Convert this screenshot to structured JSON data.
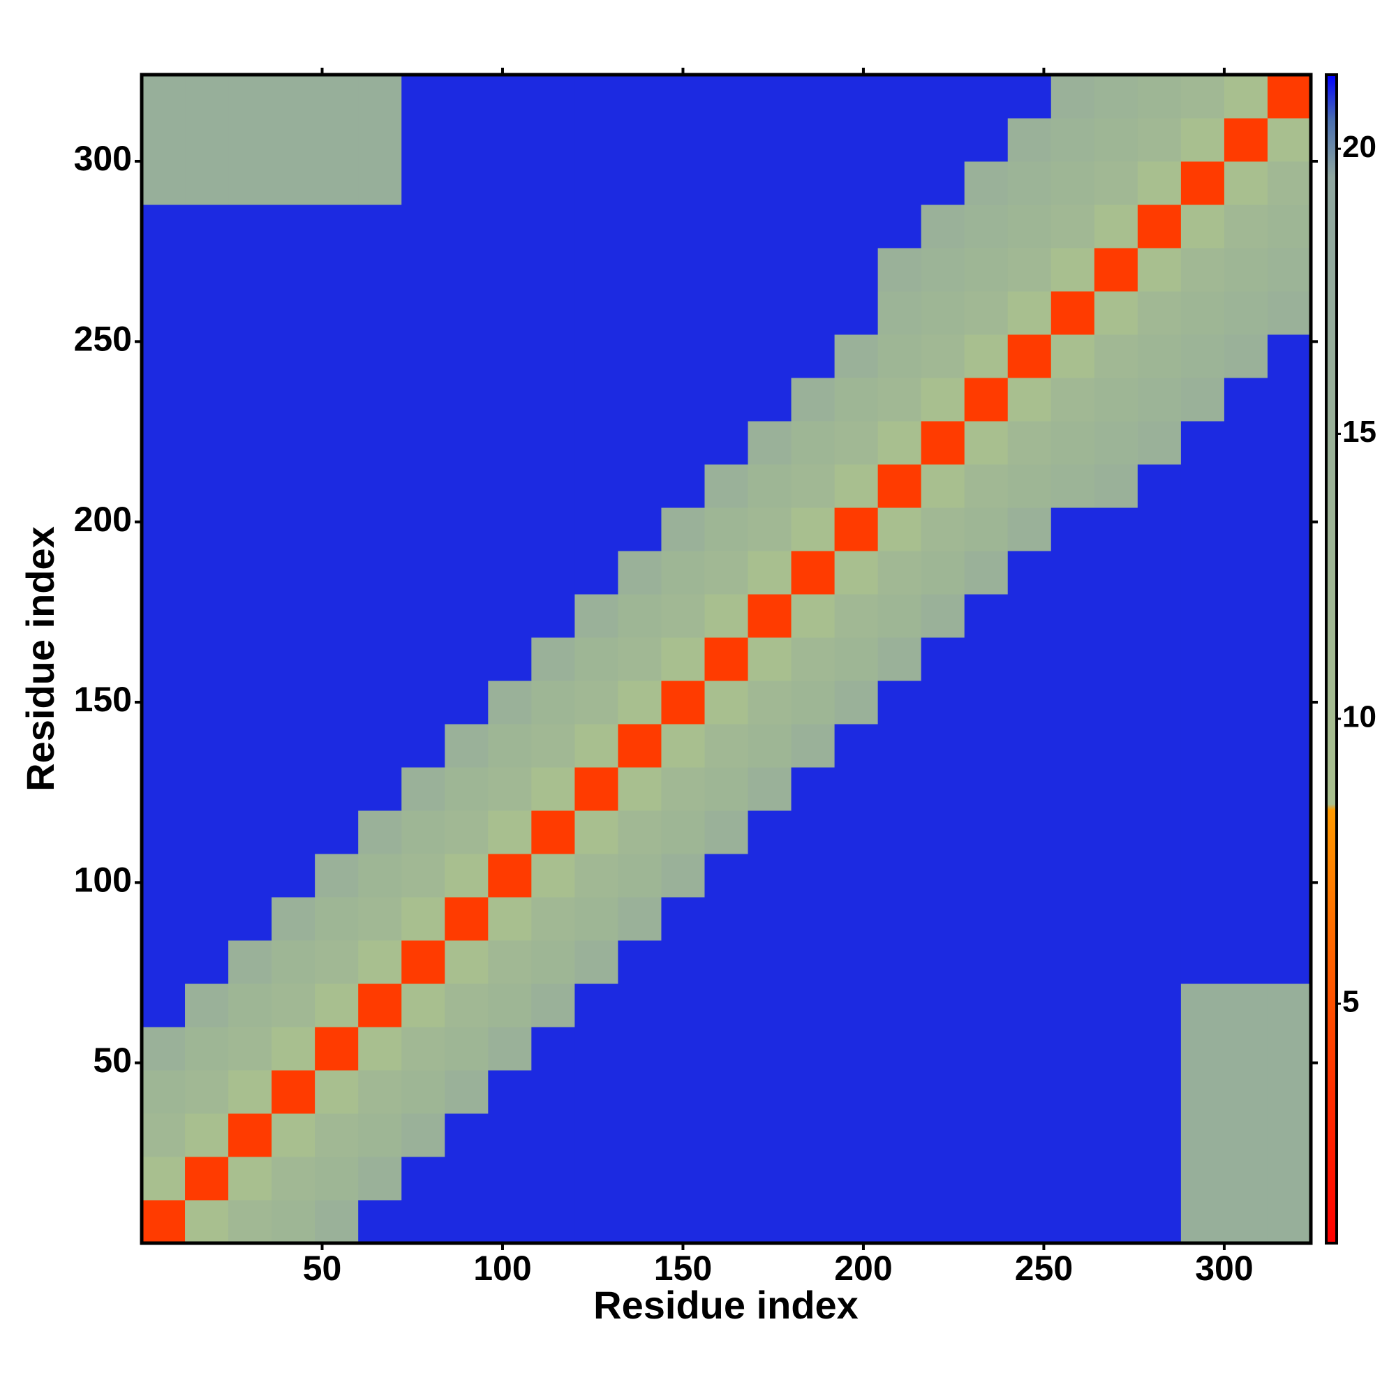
{
  "chart_data": {
    "type": "heatmap",
    "xlabel": "Residue index",
    "ylabel": "Residue index",
    "x_edges": [
      0,
      12,
      24,
      36,
      48,
      60,
      72,
      84,
      96,
      108,
      120,
      132,
      144,
      156,
      168,
      180,
      192,
      204,
      216,
      228,
      240,
      252,
      264,
      276,
      288,
      300,
      312,
      324
    ],
    "y_edges": [
      0,
      12,
      24,
      36,
      48,
      60,
      72,
      84,
      96,
      108,
      120,
      132,
      144,
      156,
      168,
      180,
      192,
      204,
      216,
      228,
      240,
      252,
      264,
      276,
      288,
      300,
      312,
      324
    ],
    "xlim": [
      0,
      324
    ],
    "ylim": [
      0,
      324
    ],
    "xticks": [
      50,
      100,
      150,
      200,
      250,
      300
    ],
    "yticks": [
      50,
      100,
      150,
      200,
      250,
      300
    ],
    "z": [
      [
        4,
        9,
        12,
        13,
        15,
        21,
        21,
        21,
        21,
        21,
        21,
        21,
        21,
        21,
        21,
        21,
        21,
        21,
        21,
        21,
        21,
        21,
        21,
        21,
        16,
        16,
        16
      ],
      [
        9,
        4,
        9,
        12,
        13,
        15,
        21,
        21,
        21,
        21,
        21,
        21,
        21,
        21,
        21,
        21,
        21,
        21,
        21,
        21,
        21,
        21,
        21,
        21,
        16,
        16,
        16
      ],
      [
        12,
        9,
        4,
        9,
        12,
        13,
        15,
        21,
        21,
        21,
        21,
        21,
        21,
        21,
        21,
        21,
        21,
        21,
        21,
        21,
        21,
        21,
        21,
        21,
        16,
        16,
        16
      ],
      [
        13,
        12,
        9,
        4,
        9,
        12,
        13,
        15,
        21,
        21,
        21,
        21,
        21,
        21,
        21,
        21,
        21,
        21,
        21,
        21,
        21,
        21,
        21,
        21,
        16,
        16,
        16
      ],
      [
        15,
        13,
        12,
        9,
        4,
        9,
        12,
        13,
        15,
        21,
        21,
        21,
        21,
        21,
        21,
        21,
        21,
        21,
        21,
        21,
        21,
        21,
        21,
        21,
        16,
        16,
        16
      ],
      [
        21,
        15,
        13,
        12,
        9,
        4,
        9,
        12,
        13,
        15,
        21,
        21,
        21,
        21,
        21,
        21,
        21,
        21,
        21,
        21,
        21,
        21,
        21,
        21,
        16,
        16,
        16
      ],
      [
        21,
        21,
        15,
        13,
        12,
        9,
        4,
        9,
        12,
        13,
        15,
        21,
        21,
        21,
        21,
        21,
        21,
        21,
        21,
        21,
        21,
        21,
        21,
        21,
        21,
        21,
        21
      ],
      [
        21,
        21,
        21,
        15,
        13,
        12,
        9,
        4,
        9,
        12,
        13,
        15,
        21,
        21,
        21,
        21,
        21,
        21,
        21,
        21,
        21,
        21,
        21,
        21,
        21,
        21,
        21
      ],
      [
        21,
        21,
        21,
        21,
        15,
        13,
        12,
        9,
        4,
        9,
        12,
        13,
        15,
        21,
        21,
        21,
        21,
        21,
        21,
        21,
        21,
        21,
        21,
        21,
        21,
        21,
        21
      ],
      [
        21,
        21,
        21,
        21,
        21,
        15,
        13,
        12,
        9,
        4,
        9,
        12,
        13,
        15,
        21,
        21,
        21,
        21,
        21,
        21,
        21,
        21,
        21,
        21,
        21,
        21,
        21
      ],
      [
        21,
        21,
        21,
        21,
        21,
        21,
        15,
        13,
        12,
        9,
        4,
        9,
        12,
        13,
        15,
        21,
        21,
        21,
        21,
        21,
        21,
        21,
        21,
        21,
        21,
        21,
        21
      ],
      [
        21,
        21,
        21,
        21,
        21,
        21,
        21,
        15,
        13,
        12,
        9,
        4,
        9,
        12,
        13,
        15,
        21,
        21,
        21,
        21,
        21,
        21,
        21,
        21,
        21,
        21,
        21
      ],
      [
        21,
        21,
        21,
        21,
        21,
        21,
        21,
        21,
        15,
        13,
        12,
        9,
        4,
        9,
        12,
        13,
        15,
        21,
        21,
        21,
        21,
        21,
        21,
        21,
        21,
        21,
        21
      ],
      [
        21,
        21,
        21,
        21,
        21,
        21,
        21,
        21,
        21,
        15,
        13,
        12,
        9,
        4,
        9,
        12,
        13,
        15,
        21,
        21,
        21,
        21,
        21,
        21,
        21,
        21,
        21
      ],
      [
        21,
        21,
        21,
        21,
        21,
        21,
        21,
        21,
        21,
        21,
        15,
        13,
        12,
        9,
        4,
        9,
        12,
        13,
        15,
        21,
        21,
        21,
        21,
        21,
        21,
        21,
        21
      ],
      [
        21,
        21,
        21,
        21,
        21,
        21,
        21,
        21,
        21,
        21,
        21,
        15,
        13,
        12,
        9,
        4,
        9,
        12,
        13,
        15,
        21,
        21,
        21,
        21,
        21,
        21,
        21
      ],
      [
        21,
        21,
        21,
        21,
        21,
        21,
        21,
        21,
        21,
        21,
        21,
        21,
        15,
        13,
        12,
        9,
        4,
        9,
        12,
        13,
        15,
        21,
        21,
        21,
        21,
        21,
        21
      ],
      [
        21,
        21,
        21,
        21,
        21,
        21,
        21,
        21,
        21,
        21,
        21,
        21,
        21,
        15,
        13,
        12,
        9,
        4,
        9,
        12,
        13,
        14,
        15,
        21,
        21,
        21,
        21
      ],
      [
        21,
        21,
        21,
        21,
        21,
        21,
        21,
        21,
        21,
        21,
        21,
        21,
        21,
        21,
        15,
        13,
        12,
        9,
        4,
        9,
        12,
        13,
        14,
        15,
        21,
        21,
        21
      ],
      [
        21,
        21,
        21,
        21,
        21,
        21,
        21,
        21,
        21,
        21,
        21,
        21,
        21,
        21,
        21,
        15,
        13,
        12,
        9,
        4,
        9,
        12,
        13,
        14,
        15,
        21,
        21
      ],
      [
        21,
        21,
        21,
        21,
        21,
        21,
        21,
        21,
        21,
        21,
        21,
        21,
        21,
        21,
        21,
        21,
        15,
        13,
        12,
        9,
        4,
        9,
        12,
        13,
        14,
        15,
        21
      ],
      [
        21,
        21,
        21,
        21,
        21,
        21,
        21,
        21,
        21,
        21,
        21,
        21,
        21,
        21,
        21,
        21,
        21,
        14,
        13,
        12,
        9,
        4,
        9,
        12,
        13,
        14,
        15
      ],
      [
        21,
        21,
        21,
        21,
        21,
        21,
        21,
        21,
        21,
        21,
        21,
        21,
        21,
        21,
        21,
        21,
        21,
        15,
        14,
        13,
        12,
        9,
        4,
        9,
        12,
        13,
        14
      ],
      [
        21,
        21,
        21,
        21,
        21,
        21,
        21,
        21,
        21,
        21,
        21,
        21,
        21,
        21,
        21,
        21,
        21,
        21,
        15,
        14,
        13,
        12,
        9,
        4,
        9,
        12,
        13
      ],
      [
        16,
        16,
        16,
        16,
        16,
        16,
        21,
        21,
        21,
        21,
        21,
        21,
        21,
        21,
        21,
        21,
        21,
        21,
        21,
        15,
        14,
        13,
        12,
        9,
        4,
        9,
        12
      ],
      [
        16,
        16,
        16,
        16,
        16,
        16,
        21,
        21,
        21,
        21,
        21,
        21,
        21,
        21,
        21,
        21,
        21,
        21,
        21,
        21,
        15,
        14,
        13,
        12,
        9,
        4,
        9
      ],
      [
        16,
        16,
        16,
        16,
        16,
        16,
        21,
        21,
        21,
        21,
        21,
        21,
        21,
        21,
        21,
        21,
        21,
        21,
        21,
        21,
        21,
        15,
        14,
        13,
        12,
        9,
        4
      ]
    ],
    "colorbar": {
      "lim": [
        0.8,
        21.3
      ],
      "ticks": [
        5,
        10,
        15,
        20
      ],
      "stops": [
        {
          "value": 0.8,
          "color": "#ff0000"
        },
        {
          "value": 3.5,
          "color": "#ff3000"
        },
        {
          "value": 8.4,
          "color": "#ff9a00"
        },
        {
          "value": 8.5,
          "color": "#a9c08e"
        },
        {
          "value": 19.5,
          "color": "#8fa7a0"
        },
        {
          "value": 20.5,
          "color": "#4a6fb0"
        },
        {
          "value": 21.3,
          "color": "#0000ff"
        }
      ]
    }
  }
}
